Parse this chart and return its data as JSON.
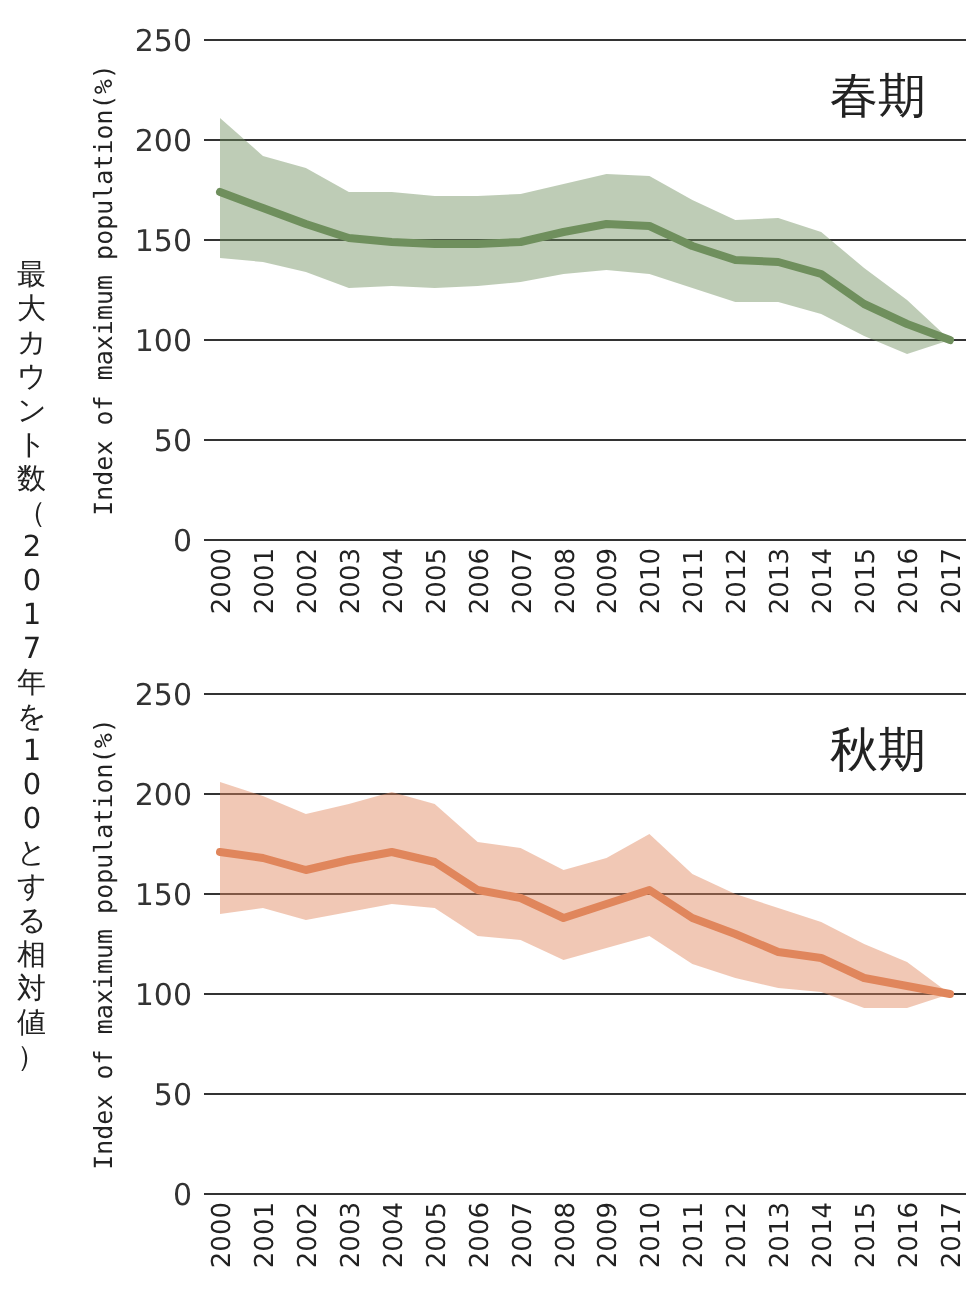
{
  "chart_data": [
    {
      "type": "line",
      "title": "春期",
      "ylabel": "Index of maximum population(%)",
      "annotations": [
        "最大カウント数（2017年を100とする相対値）"
      ],
      "categories": [
        "2000",
        "2001",
        "2002",
        "2003",
        "2004",
        "2005",
        "2006",
        "2007",
        "2008",
        "2009",
        "2010",
        "2011",
        "2012",
        "2013",
        "2014",
        "2015",
        "2016",
        "2017"
      ],
      "ylim": [
        0,
        250
      ],
      "yticks": [
        0,
        50,
        100,
        150,
        200,
        250
      ],
      "grid": "y",
      "series": [
        {
          "color": "#6f8f5d",
          "values": [
            174,
            166,
            158,
            151,
            149,
            148,
            148,
            149,
            154,
            158,
            157,
            147,
            140,
            139,
            133,
            118,
            108,
            100
          ],
          "lower": [
            141,
            139,
            134,
            126,
            127,
            126,
            127,
            129,
            133,
            135,
            133,
            126,
            119,
            119,
            113,
            102,
            93,
            100
          ],
          "upper": [
            211,
            192,
            186,
            174,
            174,
            172,
            172,
            173,
            178,
            183,
            182,
            170,
            160,
            161,
            154,
            136,
            120,
            100
          ]
        }
      ]
    },
    {
      "type": "line",
      "title": "秋期",
      "ylabel": "Index of maximum population(%)",
      "categories": [
        "2000",
        "2001",
        "2002",
        "2003",
        "2004",
        "2005",
        "2006",
        "2007",
        "2008",
        "2009",
        "2010",
        "2011",
        "2012",
        "2013",
        "2014",
        "2015",
        "2016",
        "2017"
      ],
      "ylim": [
        0,
        250
      ],
      "yticks": [
        0,
        50,
        100,
        150,
        200,
        250
      ],
      "grid": "y",
      "series": [
        {
          "color": "#e0865c",
          "values": [
            171,
            168,
            162,
            167,
            171,
            166,
            152,
            148,
            138,
            145,
            152,
            138,
            130,
            121,
            118,
            108,
            104,
            100
          ],
          "lower": [
            140,
            143,
            137,
            141,
            145,
            143,
            129,
            127,
            117,
            123,
            129,
            115,
            108,
            103,
            101,
            93,
            93,
            100
          ],
          "upper": [
            206,
            199,
            190,
            195,
            201,
            195,
            176,
            173,
            162,
            168,
            180,
            160,
            150,
            143,
            136,
            125,
            116,
            100
          ]
        }
      ]
    }
  ]
}
